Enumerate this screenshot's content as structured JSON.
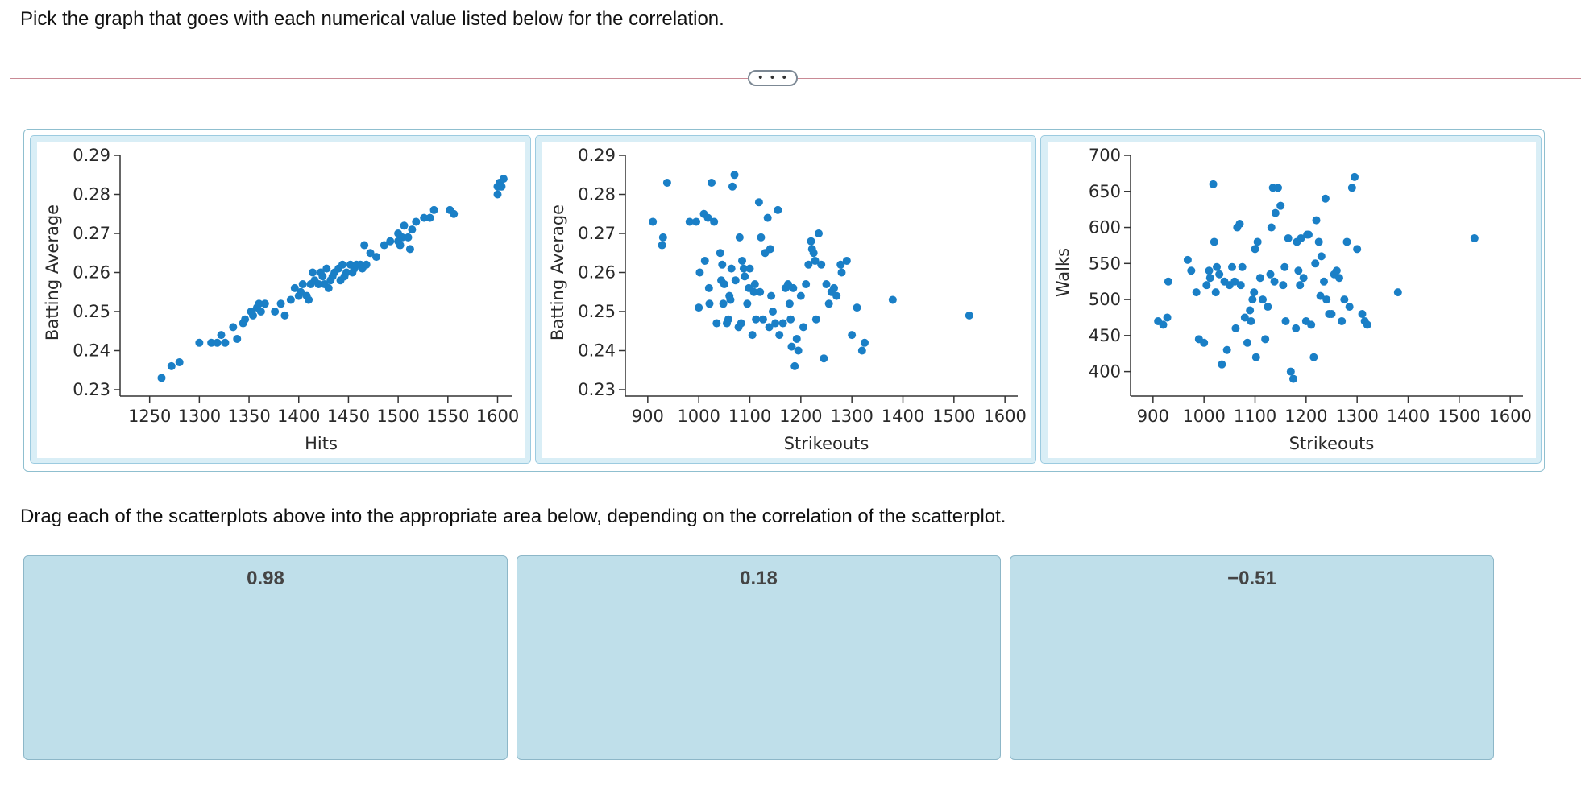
{
  "instructions": {
    "top": "Pick the graph that goes with each numerical value listed below for the correlation.",
    "drag": "Drag each of the scatterplots above into the appropriate area below, depending on the correlation of the scatterplot."
  },
  "more_button": "• • •",
  "drop_zones": [
    {
      "label": "0.98"
    },
    {
      "label": "0.18"
    },
    {
      "label": "−0.51"
    }
  ],
  "colors": {
    "point": "#1a7fc6",
    "card_bg": "#d9eef6",
    "zone_bg": "#bfdfea"
  },
  "chart_data": [
    {
      "type": "scatter",
      "xlabel": "Hits",
      "ylabel": "Batting Average",
      "xlim": [
        1230,
        1615
      ],
      "ylim": [
        0.23,
        0.29
      ],
      "xticks": [
        1250,
        1300,
        1350,
        1400,
        1450,
        1500,
        1550,
        1600
      ],
      "yticks": [
        0.23,
        0.24,
        0.25,
        0.26,
        0.27,
        0.28,
        0.29
      ],
      "ytick_labels": [
        "0.23",
        "0.24",
        "0.25",
        "0.26",
        "0.27",
        "0.28",
        "0.29"
      ],
      "grid": false,
      "x": [
        1262,
        1272,
        1280,
        1300,
        1312,
        1318,
        1322,
        1326,
        1334,
        1338,
        1344,
        1346,
        1352,
        1354,
        1358,
        1360,
        1362,
        1366,
        1376,
        1382,
        1386,
        1392,
        1396,
        1400,
        1402,
        1404,
        1408,
        1410,
        1412,
        1414,
        1416,
        1420,
        1422,
        1424,
        1426,
        1428,
        1430,
        1432,
        1434,
        1436,
        1440,
        1442,
        1444,
        1446,
        1448,
        1452,
        1454,
        1456,
        1458,
        1462,
        1464,
        1466,
        1468,
        1472,
        1478,
        1486,
        1492,
        1500,
        1500,
        1502,
        1504,
        1506,
        1510,
        1512,
        1514,
        1518,
        1526,
        1532,
        1536,
        1552,
        1556,
        1600,
        1600,
        1602,
        1602,
        1604,
        1606
      ],
      "y": [
        0.233,
        0.236,
        0.237,
        0.242,
        0.242,
        0.242,
        0.244,
        0.242,
        0.246,
        0.243,
        0.247,
        0.248,
        0.25,
        0.249,
        0.251,
        0.252,
        0.25,
        0.252,
        0.25,
        0.252,
        0.249,
        0.253,
        0.256,
        0.254,
        0.255,
        0.257,
        0.254,
        0.253,
        0.257,
        0.26,
        0.258,
        0.257,
        0.26,
        0.259,
        0.257,
        0.261,
        0.256,
        0.258,
        0.259,
        0.26,
        0.261,
        0.258,
        0.262,
        0.259,
        0.26,
        0.262,
        0.26,
        0.261,
        0.262,
        0.262,
        0.261,
        0.267,
        0.262,
        0.265,
        0.264,
        0.267,
        0.268,
        0.27,
        0.268,
        0.267,
        0.269,
        0.272,
        0.269,
        0.266,
        0.271,
        0.273,
        0.274,
        0.274,
        0.276,
        0.276,
        0.275,
        0.28,
        0.282,
        0.283,
        0.282,
        0.282,
        0.284
      ]
    },
    {
      "type": "scatter",
      "xlabel": "Strikeouts",
      "ylabel": "Batting Average",
      "xlim": [
        875,
        1625
      ],
      "ylim": [
        0.23,
        0.29
      ],
      "xticks": [
        900,
        1000,
        1100,
        1200,
        1300,
        1400,
        1500,
        1600
      ],
      "yticks": [
        0.23,
        0.24,
        0.25,
        0.26,
        0.27,
        0.28,
        0.29
      ],
      "ytick_labels": [
        "0.23",
        "0.24",
        "0.25",
        "0.26",
        "0.27",
        "0.28",
        "0.29"
      ],
      "grid": false,
      "x": [
        910,
        928,
        930,
        938,
        982,
        995,
        1000,
        1002,
        1010,
        1012,
        1018,
        1020,
        1021,
        1025,
        1030,
        1035,
        1042,
        1044,
        1046,
        1048,
        1050,
        1055,
        1058,
        1060,
        1062,
        1064,
        1066,
        1070,
        1072,
        1078,
        1080,
        1083,
        1085,
        1088,
        1090,
        1095,
        1098,
        1100,
        1105,
        1108,
        1110,
        1112,
        1118,
        1120,
        1122,
        1126,
        1130,
        1135,
        1138,
        1140,
        1142,
        1145,
        1150,
        1155,
        1158,
        1165,
        1170,
        1175,
        1178,
        1180,
        1182,
        1185,
        1188,
        1192,
        1195,
        1200,
        1205,
        1210,
        1215,
        1220,
        1222,
        1225,
        1228,
        1230,
        1235,
        1240,
        1245,
        1250,
        1255,
        1260,
        1265,
        1270,
        1278,
        1280,
        1290,
        1300,
        1310,
        1320,
        1325,
        1380,
        1530
      ],
      "y": [
        0.273,
        0.267,
        0.269,
        0.283,
        0.273,
        0.273,
        0.251,
        0.26,
        0.275,
        0.263,
        0.274,
        0.256,
        0.252,
        0.283,
        0.273,
        0.247,
        0.265,
        0.258,
        0.262,
        0.252,
        0.257,
        0.247,
        0.248,
        0.254,
        0.253,
        0.261,
        0.282,
        0.285,
        0.258,
        0.246,
        0.269,
        0.247,
        0.263,
        0.261,
        0.259,
        0.252,
        0.256,
        0.261,
        0.244,
        0.255,
        0.257,
        0.248,
        0.278,
        0.255,
        0.269,
        0.248,
        0.265,
        0.274,
        0.246,
        0.266,
        0.254,
        0.25,
        0.247,
        0.276,
        0.244,
        0.247,
        0.256,
        0.257,
        0.252,
        0.248,
        0.241,
        0.256,
        0.236,
        0.243,
        0.24,
        0.254,
        0.246,
        0.257,
        0.262,
        0.268,
        0.266,
        0.265,
        0.263,
        0.248,
        0.27,
        0.262,
        0.238,
        0.257,
        0.252,
        0.255,
        0.256,
        0.254,
        0.262,
        0.26,
        0.263,
        0.244,
        0.251,
        0.24,
        0.242,
        0.253,
        0.249
      ]
    },
    {
      "type": "scatter",
      "xlabel": "Strikeouts",
      "ylabel": "Walks",
      "xlim": [
        875,
        1625
      ],
      "ylim": [
        375,
        700
      ],
      "xticks": [
        900,
        1000,
        1100,
        1200,
        1300,
        1400,
        1500,
        1600
      ],
      "yticks": [
        400,
        450,
        500,
        550,
        600,
        650,
        700
      ],
      "ytick_labels": [
        "400",
        "450",
        "500",
        "550",
        "600",
        "650",
        "700"
      ],
      "grid": false,
      "x": [
        910,
        920,
        928,
        930,
        968,
        975,
        985,
        990,
        1000,
        1005,
        1010,
        1012,
        1018,
        1020,
        1023,
        1025,
        1030,
        1035,
        1040,
        1045,
        1050,
        1055,
        1060,
        1062,
        1065,
        1070,
        1072,
        1075,
        1080,
        1085,
        1090,
        1092,
        1095,
        1098,
        1100,
        1102,
        1105,
        1110,
        1115,
        1120,
        1125,
        1130,
        1132,
        1135,
        1138,
        1140,
        1145,
        1150,
        1155,
        1158,
        1160,
        1165,
        1170,
        1175,
        1180,
        1182,
        1185,
        1188,
        1190,
        1195,
        1200,
        1202,
        1205,
        1210,
        1215,
        1218,
        1220,
        1225,
        1228,
        1230,
        1235,
        1238,
        1240,
        1245,
        1250,
        1255,
        1260,
        1265,
        1270,
        1275,
        1280,
        1285,
        1290,
        1295,
        1300,
        1310,
        1315,
        1320,
        1380,
        1530
      ],
      "y": [
        470,
        465,
        475,
        525,
        555,
        540,
        510,
        445,
        440,
        520,
        540,
        530,
        660,
        580,
        510,
        545,
        535,
        410,
        525,
        430,
        520,
        545,
        525,
        460,
        600,
        605,
        520,
        545,
        475,
        440,
        485,
        470,
        500,
        510,
        570,
        420,
        580,
        530,
        500,
        445,
        490,
        535,
        600,
        655,
        525,
        620,
        655,
        630,
        520,
        545,
        470,
        585,
        400,
        390,
        460,
        580,
        540,
        520,
        585,
        530,
        470,
        590,
        590,
        465,
        420,
        550,
        610,
        580,
        505,
        560,
        525,
        640,
        500,
        480,
        480,
        535,
        540,
        530,
        470,
        500,
        580,
        490,
        655,
        670,
        570,
        480,
        470,
        465,
        510,
        585
      ]
    }
  ]
}
